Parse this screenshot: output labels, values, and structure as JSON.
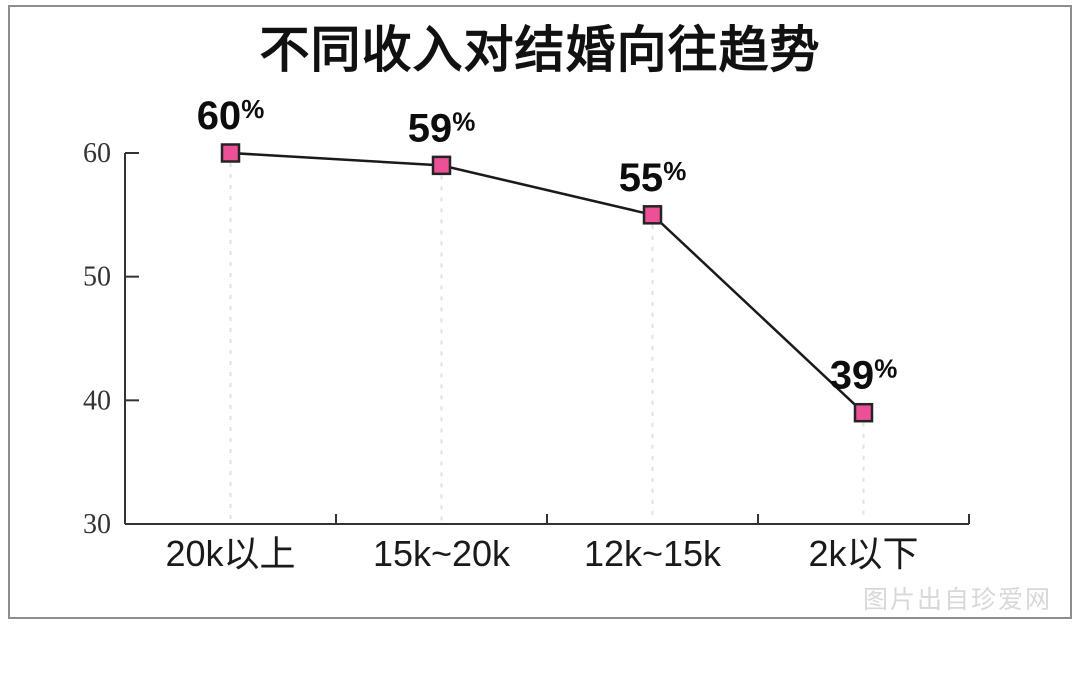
{
  "title": "不同收入对结婚向往趋势",
  "watermark": {
    "text": "图片出自珍爱网"
  },
  "chart_data": {
    "type": "line",
    "title": "不同收入对结婚向往趋势",
    "categories": [
      "20k以上",
      "15k~20k",
      "12k~15k",
      "2k以下"
    ],
    "values": [
      60,
      59,
      55,
      39
    ],
    "data_labels": [
      "60%",
      "59%",
      "55%",
      "39%"
    ],
    "value_suffix": "%",
    "xlabel": "",
    "ylabel": "",
    "yticks": [
      30,
      40,
      50,
      60
    ],
    "ylim": [
      30,
      60
    ],
    "grid": false,
    "legend": "none",
    "colors": {
      "marker_fill": "#ec5097",
      "marker_stroke": "#242424",
      "line": "#1a1a1a",
      "leader_dash": "#e2e2e2",
      "axis": "#333333",
      "tick_label": "#333333",
      "x_label": "#1a1a1a",
      "data_label": "#0d0d0d",
      "title": "#111111",
      "watermark": "#d8d8d8",
      "frame_border": "#8e8e8e"
    }
  }
}
